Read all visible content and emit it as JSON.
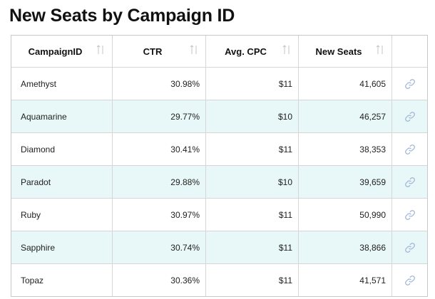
{
  "title": "New Seats by Campaign ID",
  "columns": [
    "CampaignID",
    "CTR",
    "Avg. CPC",
    "New Seats"
  ],
  "rows": [
    {
      "id": "Amethyst",
      "ctr": "30.98%",
      "cpc": "$11",
      "seats": "41,605"
    },
    {
      "id": "Aquamarine",
      "ctr": "29.77%",
      "cpc": "$10",
      "seats": "46,257"
    },
    {
      "id": "Diamond",
      "ctr": "30.41%",
      "cpc": "$11",
      "seats": "38,353"
    },
    {
      "id": "Paradot",
      "ctr": "29.88%",
      "cpc": "$10",
      "seats": "39,659"
    },
    {
      "id": "Ruby",
      "ctr": "30.97%",
      "cpc": "$11",
      "seats": "50,990"
    },
    {
      "id": "Sapphire",
      "ctr": "30.74%",
      "cpc": "$11",
      "seats": "38,866"
    },
    {
      "id": "Topaz",
      "ctr": "30.36%",
      "cpc": "$11",
      "seats": "41,571"
    }
  ],
  "colors": {
    "alt_row": "#e8f7f7",
    "link_icon": "#9bb3d6",
    "sort_icon": "#c4c4c4"
  },
  "icons": {
    "sort": "sort-arrows-icon",
    "row_action": "link-icon"
  }
}
